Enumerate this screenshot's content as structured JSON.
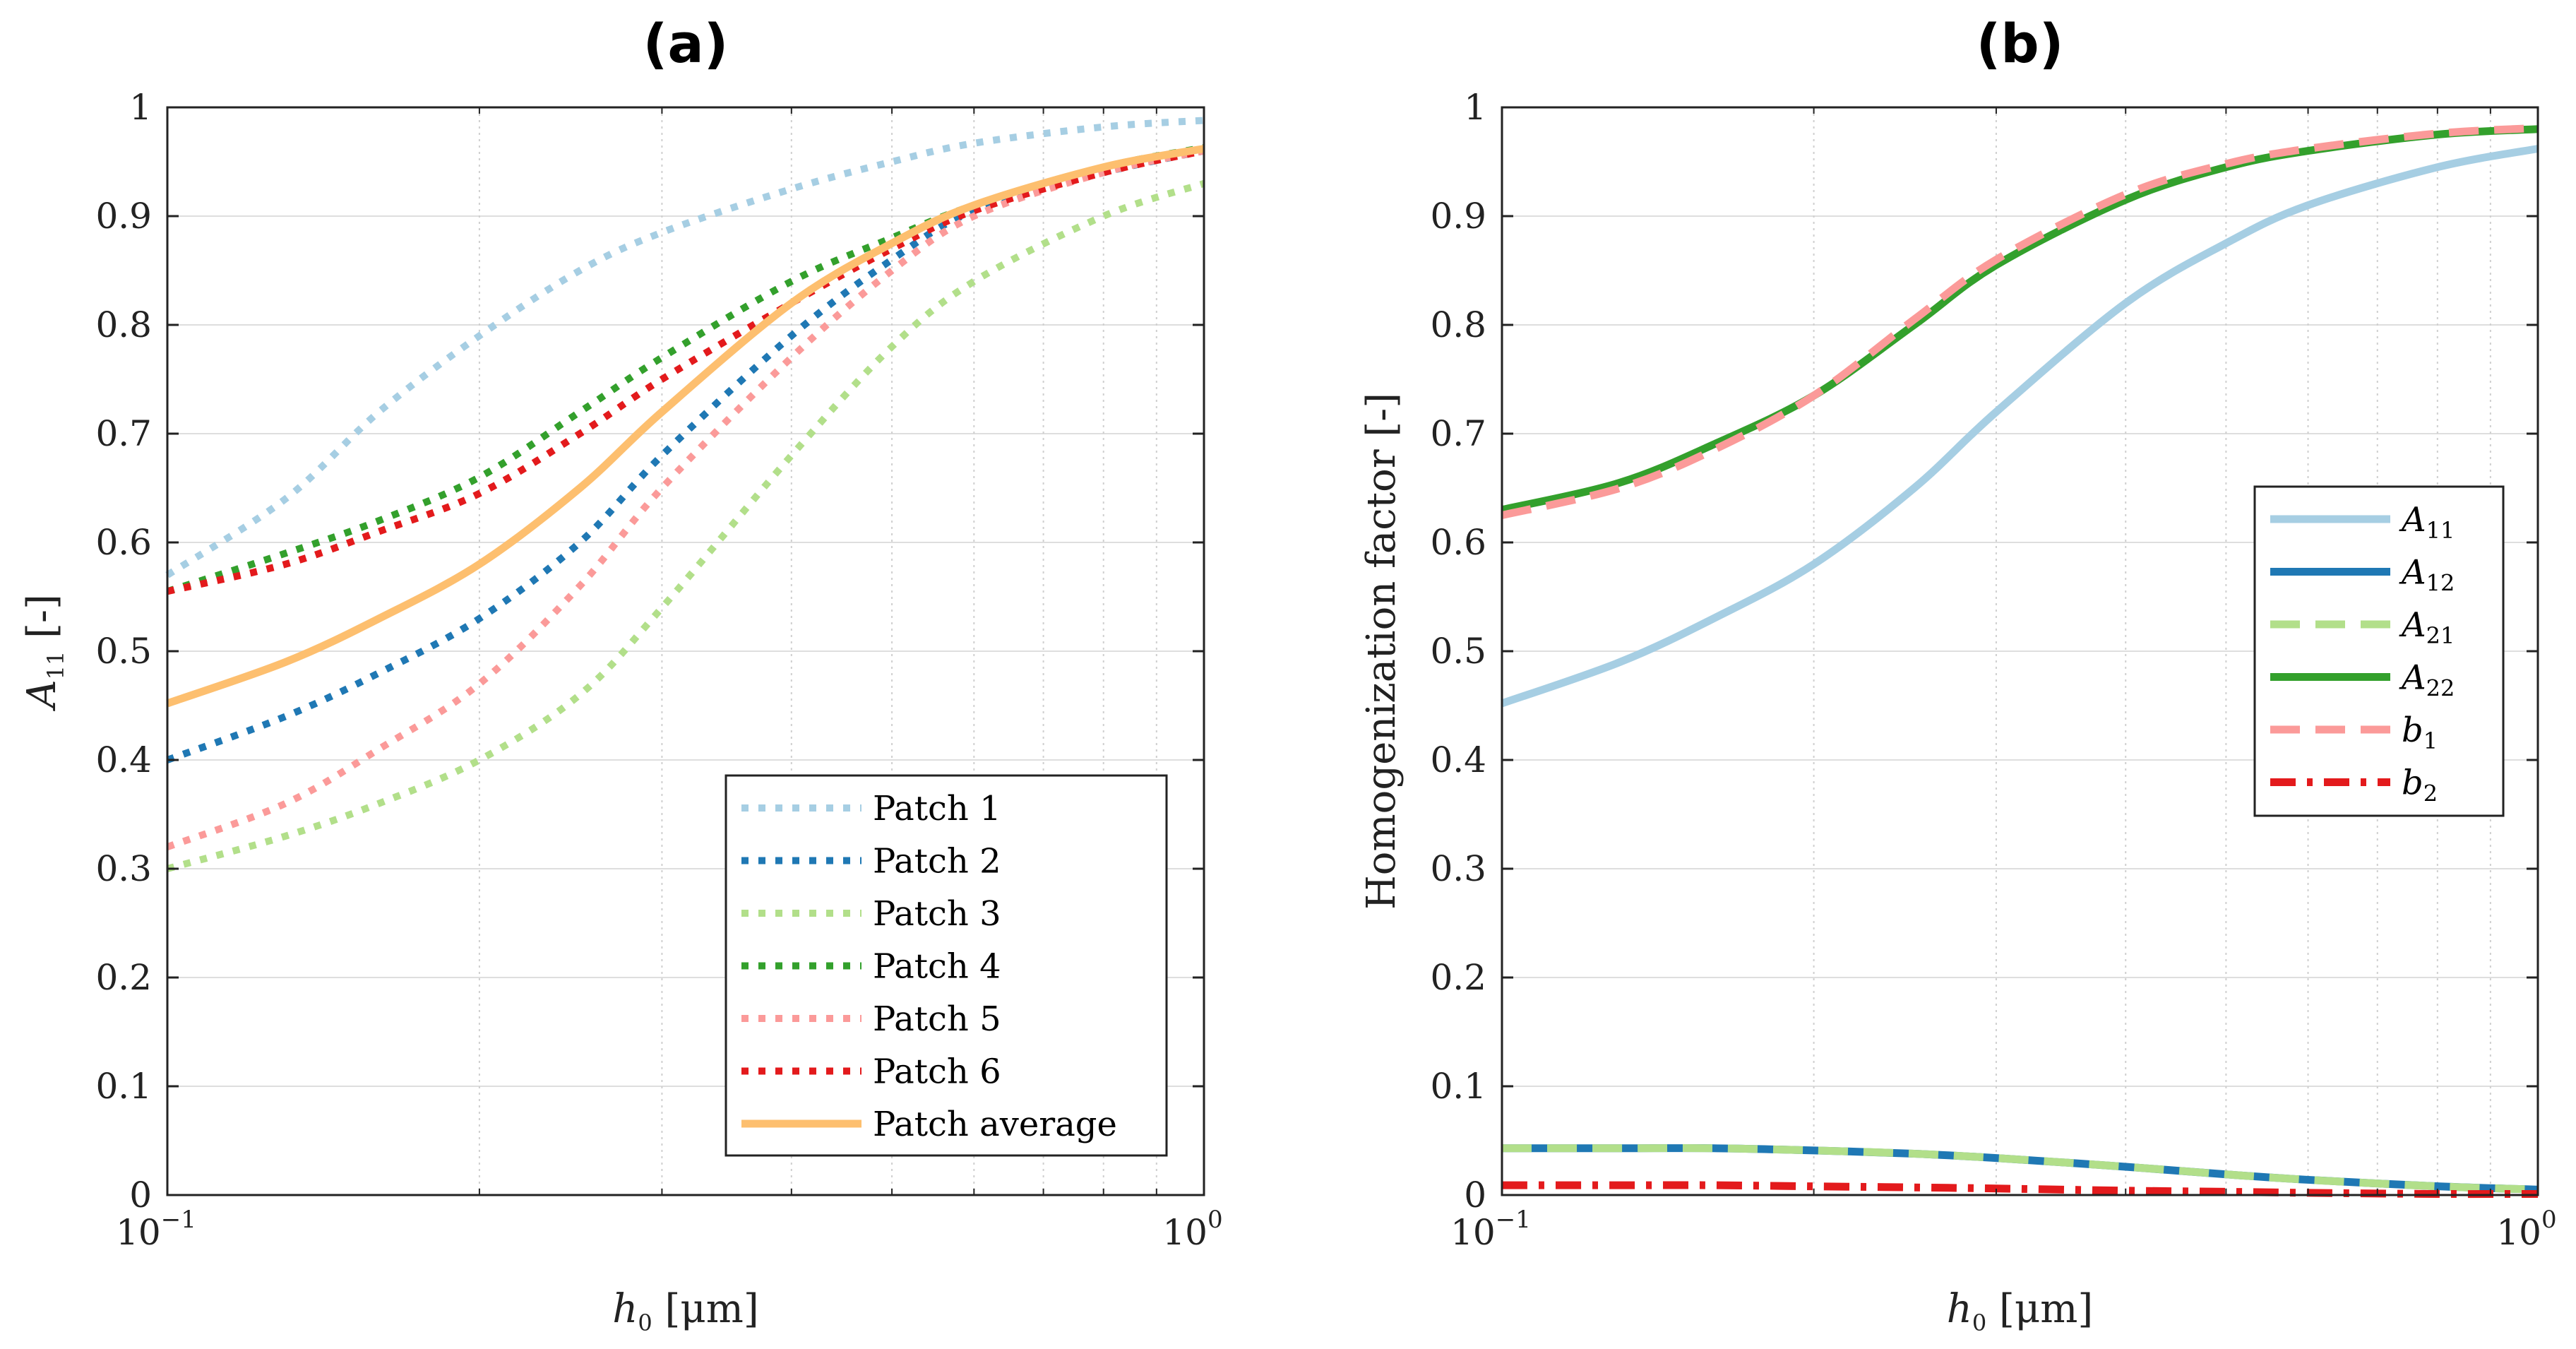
{
  "chart_data": [
    {
      "type": "line",
      "title": "(a)",
      "xscale": "log",
      "xlim": [
        0.1,
        1
      ],
      "ylim": [
        0,
        1
      ],
      "xlabel": "h0 [μm]",
      "xlabel_var": "h",
      "xlabel_sub": "0",
      "xlabel_unit": " [μm]",
      "ylabel": "A11 [-]",
      "ylabel_var": "A",
      "ylabel_sub": "11",
      "ylabel_unit": " [-]",
      "xticks": [
        {
          "base": "10",
          "exp": "−1"
        },
        {
          "base": "10",
          "exp": "0"
        }
      ],
      "yticks": [
        "0",
        "0.1",
        "0.2",
        "0.3",
        "0.4",
        "0.5",
        "0.6",
        "0.7",
        "0.8",
        "0.9",
        "1"
      ],
      "legend_position": "bottom-right",
      "x": [
        0.1,
        0.13,
        0.16,
        0.2,
        0.25,
        0.3,
        0.4,
        0.5,
        0.6,
        0.8,
        1.0
      ],
      "series": [
        {
          "name": "Patch 1",
          "color": "#a6cee3",
          "style": "dotted",
          "values": [
            0.57,
            0.64,
            0.72,
            0.79,
            0.85,
            0.885,
            0.925,
            0.95,
            0.967,
            0.982,
            0.988
          ]
        },
        {
          "name": "Patch 2",
          "color": "#1f78b4",
          "style": "dotted",
          "values": [
            0.4,
            0.44,
            0.48,
            0.53,
            0.6,
            0.68,
            0.79,
            0.86,
            0.905,
            0.94,
            0.96
          ]
        },
        {
          "name": "Patch 3",
          "color": "#b2df8a",
          "style": "dotted",
          "values": [
            0.3,
            0.33,
            0.36,
            0.4,
            0.46,
            0.54,
            0.68,
            0.78,
            0.84,
            0.9,
            0.93
          ]
        },
        {
          "name": "Patch 4",
          "color": "#33a02c",
          "style": "dotted",
          "values": [
            0.555,
            0.59,
            0.62,
            0.66,
            0.72,
            0.77,
            0.84,
            0.88,
            0.91,
            0.945,
            0.963
          ]
        },
        {
          "name": "Patch 5",
          "color": "#fb9a99",
          "style": "dotted",
          "values": [
            0.32,
            0.36,
            0.41,
            0.47,
            0.56,
            0.65,
            0.77,
            0.85,
            0.9,
            0.94,
            0.96
          ]
        },
        {
          "name": "Patch 6",
          "color": "#e31a1c",
          "style": "dotted",
          "values": [
            0.555,
            0.58,
            0.61,
            0.645,
            0.7,
            0.75,
            0.82,
            0.87,
            0.905,
            0.94,
            0.96
          ]
        },
        {
          "name": "Patch average",
          "color": "#fdbf6f",
          "style": "solid",
          "values": [
            0.452,
            0.49,
            0.53,
            0.58,
            0.65,
            0.72,
            0.82,
            0.875,
            0.91,
            0.945,
            0.962
          ]
        }
      ]
    },
    {
      "type": "line",
      "title": "(b)",
      "xscale": "log",
      "xlim": [
        0.1,
        1
      ],
      "ylim": [
        0,
        1
      ],
      "xlabel": "h0 [μm]",
      "xlabel_var": "h",
      "xlabel_sub": "0",
      "xlabel_unit": " [μm]",
      "ylabel": "Homogenization factor [-]",
      "xticks": [
        {
          "base": "10",
          "exp": "−1"
        },
        {
          "base": "10",
          "exp": "0"
        }
      ],
      "yticks": [
        "0",
        "0.1",
        "0.2",
        "0.3",
        "0.4",
        "0.5",
        "0.6",
        "0.7",
        "0.8",
        "0.9",
        "1"
      ],
      "legend_position": "center-right",
      "x": [
        0.1,
        0.13,
        0.16,
        0.2,
        0.25,
        0.3,
        0.4,
        0.5,
        0.6,
        0.8,
        1.0
      ],
      "series": [
        {
          "name": "A11",
          "var": "A",
          "sub": "11",
          "color": "#a6cee3",
          "style": "solid",
          "values": [
            0.452,
            0.49,
            0.53,
            0.58,
            0.65,
            0.72,
            0.82,
            0.875,
            0.91,
            0.945,
            0.962
          ]
        },
        {
          "name": "A12",
          "var": "A",
          "sub": "12",
          "color": "#1f78b4",
          "style": "dashed-under",
          "values": [
            0.043,
            0.043,
            0.043,
            0.041,
            0.038,
            0.034,
            0.026,
            0.019,
            0.014,
            0.008,
            0.005
          ]
        },
        {
          "name": "A21",
          "var": "A",
          "sub": "21",
          "color": "#b2df8a",
          "style": "dashed",
          "values": [
            0.043,
            0.043,
            0.043,
            0.041,
            0.038,
            0.034,
            0.026,
            0.019,
            0.014,
            0.008,
            0.005
          ]
        },
        {
          "name": "A22",
          "var": "A",
          "sub": "22",
          "color": "#33a02c",
          "style": "solid",
          "values": [
            0.63,
            0.655,
            0.69,
            0.735,
            0.8,
            0.855,
            0.915,
            0.945,
            0.96,
            0.975,
            0.98
          ]
        },
        {
          "name": "b1",
          "var": "b",
          "sub": "1",
          "color": "#fb9a99",
          "style": "dashed",
          "values": [
            0.625,
            0.65,
            0.685,
            0.735,
            0.805,
            0.86,
            0.92,
            0.948,
            0.962,
            0.976,
            0.981
          ]
        },
        {
          "name": "b2",
          "var": "b",
          "sub": "2",
          "color": "#e31a1c",
          "style": "dashdot",
          "values": [
            0.009,
            0.009,
            0.009,
            0.008,
            0.007,
            0.006,
            0.004,
            0.003,
            0.002,
            0.001,
            0.001
          ]
        }
      ]
    }
  ]
}
